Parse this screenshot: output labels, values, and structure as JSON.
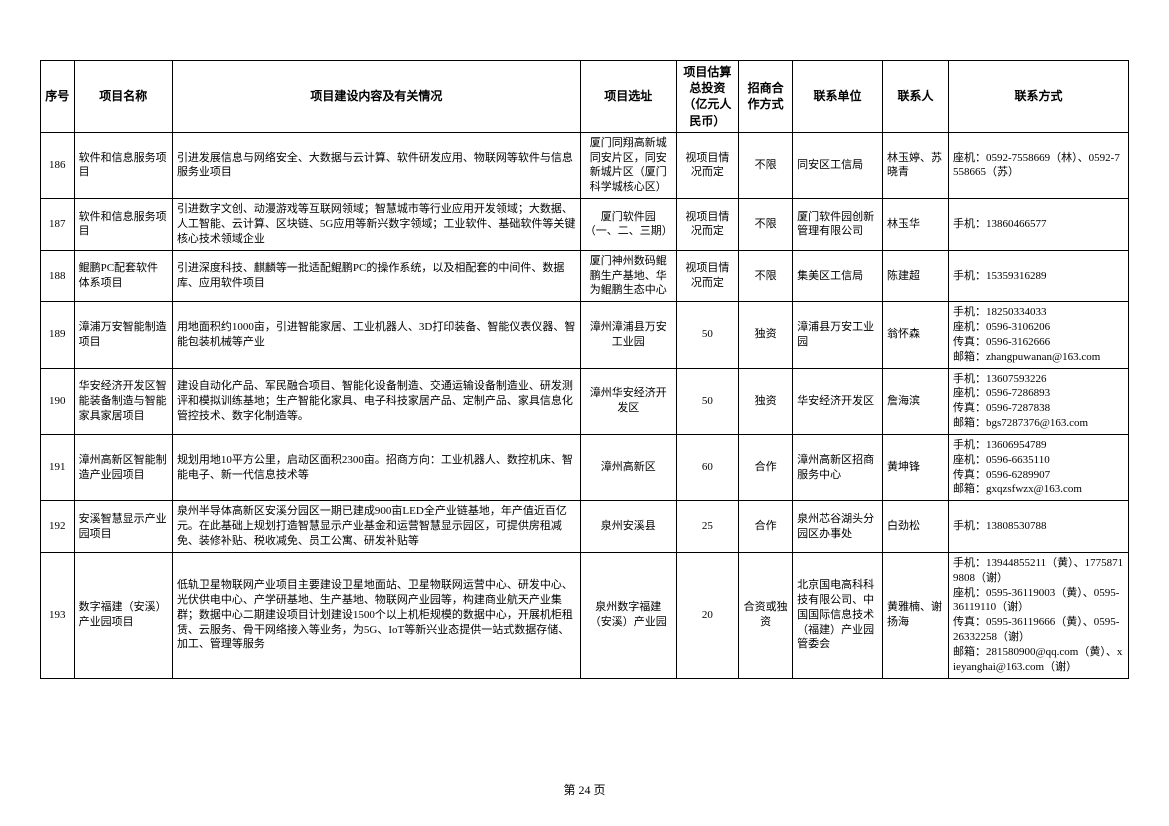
{
  "page_number_label": "第 24 页",
  "columns": {
    "idx": "序号",
    "name": "项目名称",
    "desc": "项目建设内容及有关情况",
    "loc": "项目选址",
    "inv": "项目估算总投资（亿元人民币）",
    "mode": "招商合作方式",
    "org": "联系单位",
    "person": "联系人",
    "contact": "联系方式"
  },
  "rows": [
    {
      "idx": "186",
      "name": "软件和信息服务项目",
      "desc": "引进发展信息与网络安全、大数据与云计算、软件研发应用、物联网等软件与信息服务业项目",
      "loc": "厦门同翔高新城同安片区，同安新城片区（厦门科学城核心区）",
      "inv": "视项目情况而定",
      "mode": "不限",
      "org": "同安区工信局",
      "person": "林玉婷、苏晓青",
      "contact": "座机：0592-7558669（林）、0592-7558665（苏）"
    },
    {
      "idx": "187",
      "name": "软件和信息服务项目",
      "desc": "引进数字文创、动漫游戏等互联网领域；智慧城市等行业应用开发领域；大数据、人工智能、云计算、区块链、5G应用等新兴数字领域；工业软件、基础软件等关键核心技术领域企业",
      "loc": "厦门软件园（一、二、三期）",
      "inv": "视项目情况而定",
      "mode": "不限",
      "org": "厦门软件园创新管理有限公司",
      "person": "林玉华",
      "contact": "手机：13860466577"
    },
    {
      "idx": "188",
      "name": "鲲鹏PC配套软件体系项目",
      "desc": "引进深度科技、麒麟等一批适配鲲鹏PC的操作系统，以及相配套的中间件、数据库、应用软件项目",
      "loc": "厦门神州数码鲲鹏生产基地、华为鲲鹏生态中心",
      "inv": "视项目情况而定",
      "mode": "不限",
      "org": "集美区工信局",
      "person": "陈建超",
      "contact": "手机：15359316289"
    },
    {
      "idx": "189",
      "name": "漳浦万安智能制造项目",
      "desc": "用地面积约1000亩，引进智能家居、工业机器人、3D打印装备、智能仪表仪器、智能包装机械等产业",
      "loc": "漳州漳浦县万安工业园",
      "inv": "50",
      "mode": "独资",
      "org": "漳浦县万安工业园",
      "person": "翁怀森",
      "contact": "手机：18250334033\n座机：0596-3106206\n传真：0596-3162666\n邮箱：zhangpuwanan@163.com"
    },
    {
      "idx": "190",
      "name": "华安经济开发区智能装备制造与智能家具家居项目",
      "desc": "建设自动化产品、军民融合项目、智能化设备制造、交通运输设备制造业、研发测评和模拟训练基地；生产智能化家具、电子科技家居产品、定制产品、家具信息化管控技术、数字化制造等。",
      "loc": "漳州华安经济开发区",
      "inv": "50",
      "mode": "独资",
      "org": "华安经济开发区",
      "person": "詹海滨",
      "contact": "手机：13607593226\n座机：0596-7286893\n传真：0596-7287838\n邮箱：bgs7287376@163.com"
    },
    {
      "idx": "191",
      "name": "漳州高新区智能制造产业园项目",
      "desc": "规划用地10平方公里，启动区面积2300亩。招商方向：工业机器人、数控机床、智能电子、新一代信息技术等",
      "loc": "漳州高新区",
      "inv": "60",
      "mode": "合作",
      "org": "漳州高新区招商服务中心",
      "person": "黄坤锋",
      "contact": "手机：13606954789\n座机：0596-6635110\n传真：0596-6289907\n邮箱：gxqzsfwzx@163.com"
    },
    {
      "idx": "192",
      "name": "安溪智慧显示产业园项目",
      "desc": "泉州半导体高新区安溪分园区一期已建成900亩LED全产业链基地，年产值近百亿元。在此基础上规划打造智慧显示产业基金和运营智慧显示园区，可提供房租减免、装修补贴、税收减免、员工公寓、研发补贴等",
      "loc": "泉州安溪县",
      "inv": "25",
      "mode": "合作",
      "org": "泉州芯谷湖头分园区办事处",
      "person": "白劲松",
      "contact": "手机：13808530788"
    },
    {
      "idx": "193",
      "name": "数字福建（安溪）产业园项目",
      "desc": "低轨卫星物联网产业项目主要建设卫星地面站、卫星物联网运营中心、研发中心、光伏供电中心、产学研基地、生产基地、物联网产业园等，构建商业航天产业集群；数据中心二期建设项目计划建设1500个以上机柜规模的数据中心，开展机柜租赁、云服务、骨干网络接入等业务，为5G、IoT等新兴业态提供一站式数据存储、加工、管理等服务",
      "loc": "泉州数字福建（安溪）产业园",
      "inv": "20",
      "mode": "合资或独资",
      "org": "北京国电高科科技有限公司、中国国际信息技术（福建）产业园管委会",
      "person": "黄雅楠、谢扬海",
      "contact": "手机：13944855211（黄）、17758719808（谢）\n座机：0595-36119003（黄）、0595-36119110（谢）\n传真：0595-36119666（黄）、0595-26332258（谢）\n邮箱：281580900@qq.com（黄）、xieyanghai@163.com（谢）"
    }
  ]
}
